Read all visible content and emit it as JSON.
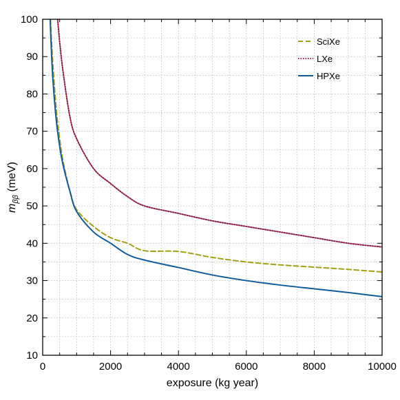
{
  "chart_data": {
    "type": "line",
    "title": "",
    "xlabel": "exposure (kg year)",
    "ylabel": {
      "main": "m",
      "sub": "ββ",
      "unit": " (meV)"
    },
    "xlim": [
      0,
      10000
    ],
    "ylim": [
      10,
      100
    ],
    "xticks": [
      0,
      2000,
      4000,
      6000,
      8000,
      10000
    ],
    "yticks": [
      10,
      20,
      30,
      40,
      50,
      60,
      70,
      80,
      90,
      100
    ],
    "grid": true,
    "legend_position": "top-right",
    "series": [
      {
        "name": "SciXe",
        "color": "#a39e14",
        "dash": "dashed",
        "x": [
          230,
          250,
          300,
          400,
          500,
          600,
          800,
          1000,
          1500,
          2000,
          2500,
          3000,
          4000,
          5000,
          6000,
          7000,
          8000,
          9000,
          10000
        ],
        "values": [
          100,
          96,
          88,
          76,
          68,
          62,
          54,
          49,
          44.5,
          41.5,
          40,
          38,
          37.8,
          36.2,
          35,
          34.2,
          33.6,
          33,
          32.3
        ]
      },
      {
        "name": "LXe",
        "color": "#8b1a4a",
        "dash": "dotted",
        "x": [
          440,
          500,
          600,
          800,
          1000,
          1500,
          2000,
          2500,
          3000,
          4000,
          5000,
          6000,
          7000,
          8000,
          9000,
          10000
        ],
        "values": [
          100,
          94,
          86,
          74,
          68,
          60,
          56,
          52.5,
          50,
          48,
          46,
          44.5,
          43,
          41.5,
          40,
          39
        ]
      },
      {
        "name": "HPXe",
        "color": "#0f5a9a",
        "dash": "solid",
        "x": [
          220,
          250,
          300,
          400,
          500,
          600,
          800,
          1000,
          1500,
          2000,
          2500,
          3000,
          4000,
          5000,
          6000,
          7000,
          8000,
          9000,
          10000
        ],
        "values": [
          100,
          93,
          84,
          73,
          66,
          61,
          54,
          48.5,
          43,
          40,
          37,
          35.5,
          33.5,
          31.5,
          30,
          28.8,
          27.8,
          26.8,
          25.7
        ]
      }
    ]
  }
}
